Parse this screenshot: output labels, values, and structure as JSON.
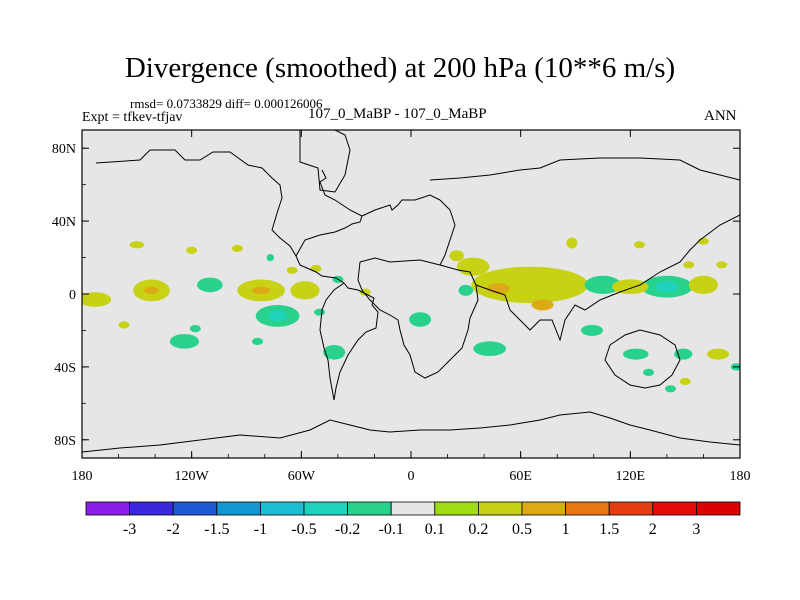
{
  "header": {
    "title": "Divergence (smoothed) at 200 hPa (10**6 m/s)",
    "stats": "rmsd= 0.0733829 diff= 0.000126006",
    "expt": "Expt = tfkev-tfjav",
    "cases": "107_0_MaBP - 107_0_MaBP",
    "season": "ANN"
  },
  "chart_data": {
    "type": "heatmap",
    "title": "Divergence (smoothed) at 200 hPa (10**6 m/s)",
    "xlabel": "",
    "ylabel": "",
    "xlim": [
      -180,
      180
    ],
    "ylim": [
      -90,
      90
    ],
    "x_ticks": [
      {
        "value": -180,
        "label": "180"
      },
      {
        "value": -120,
        "label": "120W"
      },
      {
        "value": -60,
        "label": "60W"
      },
      {
        "value": 0,
        "label": "0"
      },
      {
        "value": 60,
        "label": "60E"
      },
      {
        "value": 120,
        "label": "120E"
      },
      {
        "value": 180,
        "label": "180"
      }
    ],
    "y_ticks": [
      {
        "value": 80,
        "label": "80N"
      },
      {
        "value": 40,
        "label": "40N"
      },
      {
        "value": 0,
        "label": "0"
      },
      {
        "value": -40,
        "label": "40S"
      },
      {
        "value": -80,
        "label": "80S"
      }
    ],
    "background_color": "#e6e6e6",
    "colorbar": {
      "labels": [
        "-3",
        "-2",
        "-1.5",
        "-1",
        "-0.5",
        "-0.2",
        "-0.1",
        "0.1",
        "0.2",
        "0.5",
        "1",
        "1.5",
        "2",
        "3"
      ],
      "colors": [
        "#8c1ee8",
        "#3c28dc",
        "#1e5ad2",
        "#1496d2",
        "#1ebed2",
        "#1ed2be",
        "#28d28c",
        "#e6e6e6",
        "#a0dc14",
        "#c8d214",
        "#dcaa14",
        "#e67814",
        "#e63c14",
        "#e60a0a",
        "#dc0000"
      ]
    },
    "features": [
      {
        "lon": -150,
        "lat": 27,
        "rx": 4,
        "ry": 2,
        "value": 0.2
      },
      {
        "lon": -120,
        "lat": 24,
        "rx": 3,
        "ry": 2,
        "value": 0.2
      },
      {
        "lon": -95,
        "lat": 25,
        "rx": 3,
        "ry": 2,
        "value": 0.2
      },
      {
        "lon": -77,
        "lat": 20,
        "rx": 2,
        "ry": 2,
        "value": -0.2
      },
      {
        "lon": -65,
        "lat": 13,
        "rx": 3,
        "ry": 2,
        "value": 0.2
      },
      {
        "lon": -52,
        "lat": 14,
        "rx": 3,
        "ry": 2,
        "value": 0.2
      },
      {
        "lon": -40,
        "lat": 8,
        "rx": 3,
        "ry": 2,
        "value": -0.2
      },
      {
        "lon": -173,
        "lat": -3,
        "rx": 9,
        "ry": 4,
        "value": 0.2
      },
      {
        "lon": -142,
        "lat": 2,
        "rx": 10,
        "ry": 6,
        "value": 0.2
      },
      {
        "lon": -142,
        "lat": 2,
        "rx": 4,
        "ry": 2,
        "value": 0.5
      },
      {
        "lon": -110,
        "lat": 5,
        "rx": 7,
        "ry": 4,
        "value": -0.2
      },
      {
        "lon": -82,
        "lat": 2,
        "rx": 13,
        "ry": 6,
        "value": 0.2
      },
      {
        "lon": -82,
        "lat": 2,
        "rx": 5,
        "ry": 2,
        "value": 0.5
      },
      {
        "lon": -58,
        "lat": 2,
        "rx": 8,
        "ry": 5,
        "value": 0.2
      },
      {
        "lon": -25,
        "lat": 1,
        "rx": 3,
        "ry": 2,
        "value": 0.2
      },
      {
        "lon": -73,
        "lat": -12,
        "rx": 12,
        "ry": 6,
        "value": -0.2
      },
      {
        "lon": -73,
        "lat": -12,
        "rx": 5,
        "ry": 3,
        "value": -0.5
      },
      {
        "lon": -50,
        "lat": -10,
        "rx": 3,
        "ry": 2,
        "value": -0.2
      },
      {
        "lon": -157,
        "lat": -17,
        "rx": 3,
        "ry": 2,
        "value": 0.2
      },
      {
        "lon": -118,
        "lat": -19,
        "rx": 3,
        "ry": 2,
        "value": -0.2
      },
      {
        "lon": -124,
        "lat": -26,
        "rx": 8,
        "ry": 4,
        "value": -0.2
      },
      {
        "lon": -84,
        "lat": -26,
        "rx": 3,
        "ry": 2,
        "value": -0.2
      },
      {
        "lon": -42,
        "lat": -32,
        "rx": 6,
        "ry": 4,
        "value": -0.2
      },
      {
        "lon": 34,
        "lat": 15,
        "rx": 9,
        "ry": 5,
        "value": 0.2
      },
      {
        "lon": 25,
        "lat": 21,
        "rx": 4,
        "ry": 3,
        "value": 0.2
      },
      {
        "lon": 88,
        "lat": 28,
        "rx": 3,
        "ry": 3,
        "value": 0.2
      },
      {
        "lon": 125,
        "lat": 27,
        "rx": 3,
        "ry": 2,
        "value": 0.2
      },
      {
        "lon": 160,
        "lat": 29,
        "rx": 3,
        "ry": 2,
        "value": 0.2
      },
      {
        "lon": 152,
        "lat": 16,
        "rx": 3,
        "ry": 2,
        "value": 0.2
      },
      {
        "lon": 170,
        "lat": 16,
        "rx": 3,
        "ry": 2,
        "value": 0.2
      },
      {
        "lon": 65,
        "lat": 5,
        "rx": 32,
        "ry": 10,
        "value": 0.2
      },
      {
        "lon": 48,
        "lat": 3,
        "rx": 6,
        "ry": 3,
        "value": 0.5
      },
      {
        "lon": 72,
        "lat": -6,
        "rx": 6,
        "ry": 3,
        "value": 0.5
      },
      {
        "lon": 30,
        "lat": 2,
        "rx": 4,
        "ry": 3,
        "value": -0.2
      },
      {
        "lon": 105,
        "lat": 5,
        "rx": 10,
        "ry": 5,
        "value": -0.2
      },
      {
        "lon": 120,
        "lat": 4,
        "rx": 10,
        "ry": 4,
        "value": 0.2
      },
      {
        "lon": 140,
        "lat": 4,
        "rx": 14,
        "ry": 6,
        "value": -0.2
      },
      {
        "lon": 140,
        "lat": 4,
        "rx": 6,
        "ry": 3,
        "value": -0.5
      },
      {
        "lon": 160,
        "lat": 5,
        "rx": 8,
        "ry": 5,
        "value": 0.2
      },
      {
        "lon": 5,
        "lat": -14,
        "rx": 6,
        "ry": 4,
        "value": -0.2
      },
      {
        "lon": 43,
        "lat": -30,
        "rx": 9,
        "ry": 4,
        "value": -0.2
      },
      {
        "lon": 99,
        "lat": -20,
        "rx": 6,
        "ry": 3,
        "value": -0.2
      },
      {
        "lon": 123,
        "lat": -33,
        "rx": 7,
        "ry": 3,
        "value": -0.2
      },
      {
        "lon": 149,
        "lat": -33,
        "rx": 5,
        "ry": 3,
        "value": -0.2
      },
      {
        "lon": 168,
        "lat": -33,
        "rx": 6,
        "ry": 3,
        "value": 0.2
      },
      {
        "lon": 150,
        "lat": -48,
        "rx": 3,
        "ry": 2,
        "value": 0.2
      },
      {
        "lon": 142,
        "lat": -52,
        "rx": 3,
        "ry": 2,
        "value": -0.2
      },
      {
        "lon": 130,
        "lat": -43,
        "rx": 3,
        "ry": 2,
        "value": -0.2
      },
      {
        "lon": 178,
        "lat": -40,
        "rx": 3,
        "ry": 2,
        "value": -0.2
      }
    ]
  }
}
